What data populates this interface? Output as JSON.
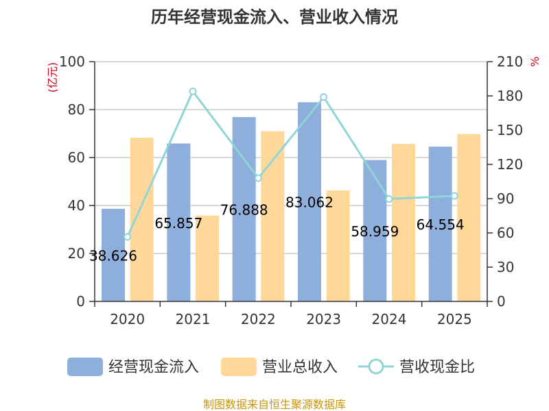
{
  "chart_data": {
    "type": "bar",
    "title": "历年经营现金流入、营业收入情况",
    "categories": [
      "2020",
      "2021",
      "2022",
      "2023",
      "2024",
      "2025"
    ],
    "series": [
      {
        "name": "经营现金流入",
        "kind": "bar",
        "axis": "left",
        "color": "#8eaedb",
        "values": [
          38.626,
          65.857,
          76.888,
          83.062,
          58.959,
          64.554
        ],
        "labels": [
          "38.626",
          "65.857",
          "76.888",
          "83.062",
          "58.959",
          "64.554"
        ]
      },
      {
        "name": "营业总收入",
        "kind": "bar",
        "axis": "left",
        "color": "#ffd899",
        "values": [
          68.3,
          35.8,
          71.0,
          46.3,
          65.7,
          69.8
        ]
      },
      {
        "name": "营收现金比",
        "kind": "line",
        "axis": "right",
        "color": "#8fd5d8",
        "values": [
          56.5,
          184,
          108,
          179,
          89.7,
          92.4
        ]
      }
    ],
    "y_left": {
      "unit": "(亿元)",
      "min": 0,
      "max": 100,
      "ticks": [
        0,
        20,
        40,
        60,
        80,
        100
      ]
    },
    "y_right": {
      "unit": "%",
      "min": 0,
      "max": 210,
      "ticks": [
        0,
        30,
        60,
        90,
        120,
        150,
        180,
        210
      ]
    },
    "legend": [
      "经营现金流入",
      "营业总收入",
      "营收现金比"
    ],
    "grid": true
  },
  "footer": {
    "source": "制图数据来自恒生聚源数据库"
  }
}
